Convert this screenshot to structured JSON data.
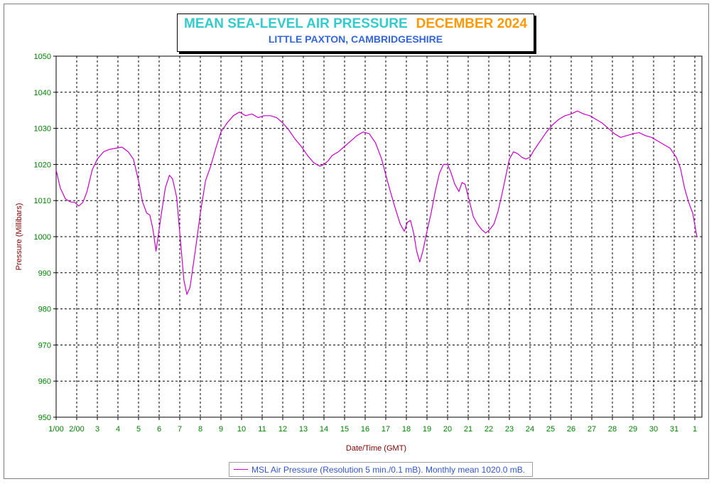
{
  "title": {
    "main": "MEAN SEA-LEVEL AIR PRESSURE",
    "month": "DECEMBER 2024",
    "subtitle": "LITTLE PAXTON, CAMBRIDGESHIRE",
    "color_main": "#33cccc",
    "color_month": "#ff9900",
    "color_subtitle": "#3366dd"
  },
  "legend": {
    "label": "MSL Air Pressure (Resolution 5 min./0.1 mB). Monthly mean 1020.0 mB.",
    "color": "#cc00cc"
  },
  "chart_data": {
    "type": "line",
    "xlabel": "Date/Time (GMT)",
    "ylabel": "Pressure (Millibars)",
    "ylim": [
      950,
      1050
    ],
    "yticks": [
      950,
      960,
      970,
      980,
      990,
      1000,
      1010,
      1020,
      1030,
      1040,
      1050
    ],
    "xlim": [
      1,
      32.1
    ],
    "xticks": [
      {
        "v": 1,
        "label": "1/00"
      },
      {
        "v": 2,
        "label": "2/00"
      },
      {
        "v": 3,
        "label": "3"
      },
      {
        "v": 4,
        "label": "4"
      },
      {
        "v": 5,
        "label": "5"
      },
      {
        "v": 6,
        "label": "6"
      },
      {
        "v": 7,
        "label": "7"
      },
      {
        "v": 8,
        "label": "8"
      },
      {
        "v": 9,
        "label": "9"
      },
      {
        "v": 10,
        "label": "10"
      },
      {
        "v": 11,
        "label": "11"
      },
      {
        "v": 12,
        "label": "12"
      },
      {
        "v": 13,
        "label": "13"
      },
      {
        "v": 14,
        "label": "14"
      },
      {
        "v": 15,
        "label": "15"
      },
      {
        "v": 16,
        "label": "16"
      },
      {
        "v": 17,
        "label": "17"
      },
      {
        "v": 18,
        "label": "18"
      },
      {
        "v": 19,
        "label": "19"
      },
      {
        "v": 20,
        "label": "20"
      },
      {
        "v": 21,
        "label": "21"
      },
      {
        "v": 22,
        "label": "22"
      },
      {
        "v": 23,
        "label": "23"
      },
      {
        "v": 24,
        "label": "24"
      },
      {
        "v": 25,
        "label": "25"
      },
      {
        "v": 26,
        "label": "26"
      },
      {
        "v": 27,
        "label": "27"
      },
      {
        "v": 28,
        "label": "28"
      },
      {
        "v": 29,
        "label": "29"
      },
      {
        "v": 30,
        "label": "30"
      },
      {
        "v": 31,
        "label": "31"
      },
      {
        "v": 32,
        "label": "1"
      }
    ],
    "grid": true,
    "series": [
      {
        "name": "MSL Air Pressure",
        "color": "#cc00cc",
        "x": [
          1.0,
          1.2,
          1.45,
          1.7,
          1.9,
          2.1,
          2.3,
          2.5,
          2.75,
          3.0,
          3.3,
          3.6,
          3.9,
          4.2,
          4.5,
          4.75,
          5.0,
          5.2,
          5.4,
          5.55,
          5.7,
          5.85,
          6.1,
          6.3,
          6.5,
          6.65,
          6.85,
          7.05,
          7.2,
          7.35,
          7.5,
          7.75,
          8.0,
          8.25,
          8.5,
          8.75,
          9.0,
          9.3,
          9.6,
          9.9,
          10.2,
          10.5,
          10.8,
          11.1,
          11.4,
          11.7,
          12.0,
          12.3,
          12.6,
          12.9,
          13.2,
          13.5,
          13.8,
          14.0,
          14.2,
          14.4,
          14.7,
          15.0,
          15.3,
          15.6,
          15.9,
          16.2,
          16.5,
          16.8,
          17.1,
          17.4,
          17.7,
          17.9,
          18.05,
          18.2,
          18.35,
          18.5,
          18.65,
          18.8,
          19.0,
          19.2,
          19.4,
          19.6,
          19.8,
          20.0,
          20.15,
          20.35,
          20.55,
          20.7,
          20.85,
          21.05,
          21.25,
          21.45,
          21.65,
          21.85,
          22.05,
          22.25,
          22.45,
          22.65,
          22.85,
          23.0,
          23.2,
          23.4,
          23.6,
          23.8,
          24.0,
          24.2,
          24.5,
          24.8,
          25.1,
          25.4,
          25.7,
          26.0,
          26.3,
          26.6,
          26.9,
          27.2,
          27.5,
          27.8,
          28.1,
          28.4,
          28.7,
          29.0,
          29.3,
          29.6,
          29.9,
          30.2,
          30.5,
          30.8,
          31.1,
          31.3,
          31.5,
          31.7,
          31.9,
          32.1
        ],
        "y": [
          1018.5,
          1013.5,
          1010.5,
          1009.6,
          1009.5,
          1008.5,
          1009.5,
          1012.5,
          1018.5,
          1021.5,
          1023.5,
          1024.2,
          1024.5,
          1024.8,
          1023.5,
          1021.5,
          1015.5,
          1009.5,
          1006.5,
          1006.0,
          1002.0,
          996.0,
          1006.0,
          1013.5,
          1017.0,
          1016.0,
          1011.0,
          998.0,
          988.0,
          984.0,
          986.0,
          996.0,
          1006.5,
          1015.5,
          1019.5,
          1024.5,
          1029.0,
          1031.5,
          1033.5,
          1034.5,
          1033.5,
          1034.0,
          1033.0,
          1033.5,
          1033.5,
          1033.0,
          1031.5,
          1029.5,
          1027.0,
          1025.0,
          1022.5,
          1020.5,
          1019.5,
          1020.0,
          1021.0,
          1022.5,
          1023.5,
          1025.0,
          1026.5,
          1028.0,
          1029.0,
          1028.5,
          1026.0,
          1021.5,
          1015.0,
          1009.0,
          1003.5,
          1001.5,
          1004.0,
          1004.5,
          1001.0,
          996.0,
          993.0,
          996.0,
          1001.5,
          1006.5,
          1012.5,
          1017.5,
          1020.0,
          1020.0,
          1018.0,
          1014.5,
          1012.5,
          1015.0,
          1014.5,
          1010.0,
          1005.5,
          1003.5,
          1002.0,
          1001.0,
          1002.0,
          1003.5,
          1007.0,
          1012.0,
          1017.5,
          1021.5,
          1023.5,
          1023.0,
          1022.0,
          1021.5,
          1022.0,
          1024.0,
          1026.5,
          1029.0,
          1031.0,
          1032.5,
          1033.5,
          1034.0,
          1034.8,
          1034.0,
          1033.5,
          1032.5,
          1031.5,
          1030.0,
          1028.5,
          1027.5,
          1028.0,
          1028.5,
          1028.8,
          1028.0,
          1027.5,
          1026.5,
          1025.5,
          1024.5,
          1022.0,
          1019.0,
          1013.5,
          1009.5,
          1006.5,
          1000.0
        ]
      }
    ]
  }
}
